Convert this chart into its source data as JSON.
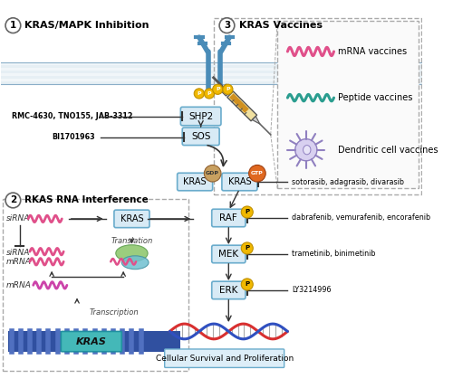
{
  "section1_title": "KRAS/MAPK Inhibition",
  "section2_title": "RKAS RNA Interference",
  "section3_title": "KRAS Vaccines",
  "drug1": "RMC-4630, TNO155, JAB-3312",
  "drug2": "BI1701963",
  "drug3": "sotorasib, adagrasib, divarasib",
  "drug4": "dabrafenib, vemurafenib, encorafenib",
  "drug5": "trametinib, binimetinib",
  "drug6": "LY3214996",
  "cell_survival": "Cellular Survival and Proliferation",
  "mrna_vaccine_label": "mRNA vaccines",
  "peptide_vaccine_label": "Peptide vaccines",
  "dendritic_vaccine_label": "Dendritic cell vaccines",
  "translation_text": "Translation",
  "transcription_text": "Transcription",
  "kras_gene_label": "KRAS",
  "bg_color": "#ffffff",
  "phospho_color": "#f0b800",
  "gdp_color": "#c8a060",
  "gtp_color": "#e06820",
  "rna_pink": "#e0508a",
  "rna_purple": "#cc44aa",
  "rna_teal": "#2a9d8f",
  "box_face": "#d8eaf5",
  "box_edge": "#6aaccc",
  "membrane_face": "#c8dce8",
  "receptor_color": "#4a8cb8",
  "arrow_color": "#333333",
  "section_border": "#aaaaaa",
  "cell_box_face": "#ddeef8"
}
